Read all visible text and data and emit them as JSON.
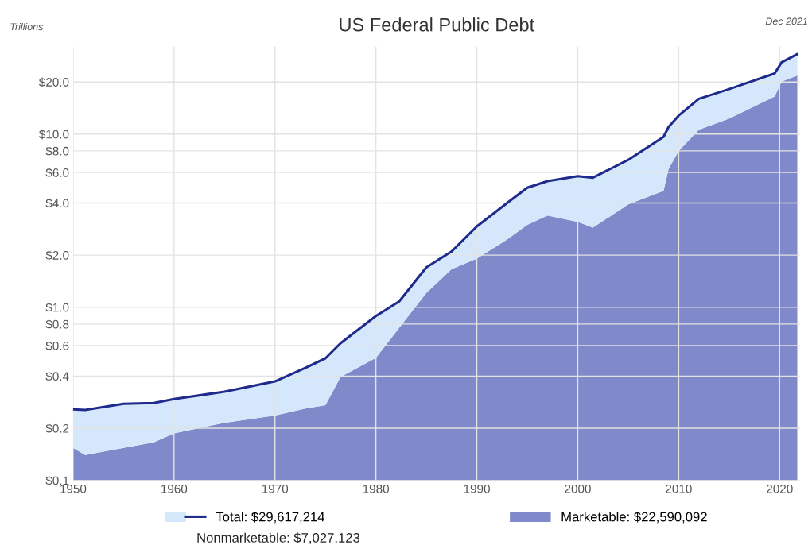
{
  "chart_data": {
    "type": "area",
    "title": "US Federal Public Debt",
    "ylabel": "Trillions",
    "annotations": [
      "Dec 2021",
      "Nonmarketable: $7,027,123"
    ],
    "x": [
      1950,
      1951.2,
      1955,
      1958,
      1960,
      1965,
      1970,
      1973,
      1975,
      1976.5,
      1980,
      1982.3,
      1985,
      1987.5,
      1990,
      1993,
      1995,
      1997,
      2000,
      2001.5,
      2005,
      2008.5,
      2009,
      2010,
      2012,
      2015,
      2019.5,
      2020.2,
      2021.75
    ],
    "log": "y",
    "grid": true,
    "legend": "bottom",
    "xlim": [
      1950,
      2022
    ],
    "xticks": [
      1950,
      1960,
      1970,
      1980,
      1990,
      2000,
      2010,
      2020
    ],
    "ylim": [
      0.1,
      32
    ],
    "yticks": [
      {
        "value": 0.1,
        "label": "$0.1"
      },
      {
        "value": 0.2,
        "label": "$0.2"
      },
      {
        "value": 0.4,
        "label": "$0.4"
      },
      {
        "value": 0.6,
        "label": "$0.6"
      },
      {
        "value": 0.8,
        "label": "$0.8"
      },
      {
        "value": 1,
        "label": "$1.0"
      },
      {
        "value": 2,
        "label": "$2.0"
      },
      {
        "value": 4,
        "label": "$4.0"
      },
      {
        "value": 6,
        "label": "$6.0"
      },
      {
        "value": 8,
        "label": "$8.0"
      },
      {
        "value": 10,
        "label": "$10.0"
      },
      {
        "value": 20,
        "label": "$20.0"
      }
    ],
    "series": [
      {
        "name": "Marketable: $22,590,092",
        "color": "#8089c9",
        "values": [
          0.154,
          0.14,
          0.154,
          0.166,
          0.187,
          0.215,
          0.237,
          0.26,
          0.272,
          0.395,
          0.51,
          0.76,
          1.21,
          1.66,
          1.91,
          2.46,
          2.99,
          3.39,
          3.11,
          2.88,
          3.93,
          4.7,
          6.3,
          8.0,
          10.6,
          12.3,
          16.5,
          20.1,
          21.8
        ]
      },
      {
        "name": "Total: $29,617,214",
        "type": "line",
        "color": "#1e2a8c",
        "values": [
          0.257,
          0.255,
          0.277,
          0.28,
          0.295,
          0.325,
          0.373,
          0.446,
          0.507,
          0.62,
          0.89,
          1.08,
          1.7,
          2.1,
          2.93,
          4.0,
          4.9,
          5.35,
          5.72,
          5.6,
          7.1,
          9.64,
          11.0,
          12.8,
          16.0,
          18.2,
          22.4,
          26.0,
          29.0
        ],
        "lower": [
          0.154,
          0.14,
          0.154,
          0.166,
          0.187,
          0.215,
          0.237,
          0.26,
          0.272,
          0.395,
          0.51,
          0.76,
          1.21,
          1.66,
          1.91,
          2.46,
          2.99,
          3.39,
          3.11,
          2.88,
          3.93,
          4.7,
          6.3,
          8.0,
          10.6,
          12.3,
          16.5,
          20.1,
          21.8
        ],
        "upper": [
          0.257,
          0.255,
          0.277,
          0.28,
          0.295,
          0.325,
          0.373,
          0.446,
          0.507,
          0.62,
          0.89,
          1.08,
          1.7,
          2.1,
          2.93,
          4.0,
          4.9,
          5.35,
          5.72,
          5.6,
          7.1,
          9.64,
          11.0,
          12.8,
          16.0,
          18.2,
          22.4,
          26.0,
          29.0
        ]
      }
    ]
  }
}
